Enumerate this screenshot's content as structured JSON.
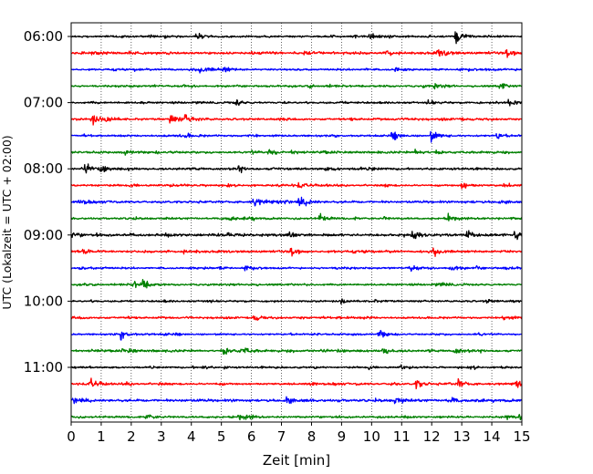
{
  "chart_data": {
    "type": "line",
    "title": "",
    "xlabel": "Zeit  [min]",
    "ylabel": "UTC (Lokalzeit = UTC + 02:00)",
    "xlim": [
      0,
      15
    ],
    "x_ticks": [
      0,
      1,
      2,
      3,
      4,
      5,
      6,
      7,
      8,
      9,
      10,
      11,
      12,
      13,
      14,
      15
    ],
    "y_ticks": [
      "06:00",
      "07:00",
      "08:00",
      "09:00",
      "10:00",
      "11:00"
    ],
    "grid": "vertical-dotted",
    "trace_colors": [
      "#000000",
      "#ff0000",
      "#0000ff",
      "#008000"
    ],
    "traces": [
      {
        "start": "06:00",
        "color": "#000000",
        "amplitude": 1.0,
        "events": [
          [
            12.8,
            4.0
          ],
          [
            9.9,
            2.0
          ],
          [
            4.2,
            1.5
          ]
        ]
      },
      {
        "start": "06:15",
        "color": "#ff0000",
        "amplitude": 1.3,
        "events": [
          [
            10.5,
            2.5
          ],
          [
            12.2,
            2.0
          ],
          [
            14.5,
            2.0
          ]
        ]
      },
      {
        "start": "06:30",
        "color": "#0000ff",
        "amplitude": 1.0,
        "events": [
          [
            4.3,
            2.0
          ],
          [
            5.1,
            1.5
          ],
          [
            10.8,
            1.5
          ]
        ]
      },
      {
        "start": "06:45",
        "color": "#008000",
        "amplitude": 1.0,
        "events": [
          [
            14.3,
            2.0
          ],
          [
            12.1,
            1.5
          ]
        ]
      },
      {
        "start": "07:00",
        "color": "#000000",
        "amplitude": 1.0,
        "events": [
          [
            5.5,
            2.0
          ],
          [
            14.6,
            2.0
          ],
          [
            11.9,
            1.5
          ]
        ]
      },
      {
        "start": "07:15",
        "color": "#ff0000",
        "amplitude": 1.1,
        "events": [
          [
            0.7,
            3.0
          ],
          [
            3.3,
            3.0
          ],
          [
            3.8,
            2.5
          ],
          [
            1.2,
            2.0
          ]
        ]
      },
      {
        "start": "07:30",
        "color": "#0000ff",
        "amplitude": 1.0,
        "events": [
          [
            12.0,
            3.0
          ],
          [
            10.7,
            2.0
          ],
          [
            14.2,
            1.5
          ]
        ]
      },
      {
        "start": "07:45",
        "color": "#008000",
        "amplitude": 1.2,
        "events": [
          [
            6.6,
            2.0
          ],
          [
            1.8,
            1.5
          ],
          [
            11.5,
            1.5
          ]
        ]
      },
      {
        "start": "08:00",
        "color": "#000000",
        "amplitude": 1.2,
        "events": [
          [
            0.5,
            2.5
          ],
          [
            1.0,
            2.0
          ],
          [
            5.6,
            1.5
          ]
        ]
      },
      {
        "start": "08:15",
        "color": "#ff0000",
        "amplitude": 1.0,
        "events": [
          [
            13.0,
            3.0
          ],
          [
            7.6,
            1.5
          ]
        ]
      },
      {
        "start": "08:30",
        "color": "#0000ff",
        "amplitude": 1.2,
        "events": [
          [
            7.6,
            3.5
          ],
          [
            6.1,
            2.5
          ],
          [
            0.3,
            1.5
          ]
        ]
      },
      {
        "start": "08:45",
        "color": "#008000",
        "amplitude": 1.0,
        "events": [
          [
            12.6,
            2.5
          ],
          [
            8.3,
            2.0
          ],
          [
            5.3,
            1.5
          ]
        ]
      },
      {
        "start": "09:00",
        "color": "#000000",
        "amplitude": 1.3,
        "events": [
          [
            11.4,
            3.0
          ],
          [
            14.8,
            3.0
          ],
          [
            13.2,
            2.5
          ],
          [
            7.3,
            2.0
          ]
        ]
      },
      {
        "start": "09:15",
        "color": "#ff0000",
        "amplitude": 1.2,
        "events": [
          [
            7.3,
            2.5
          ],
          [
            12.1,
            2.0
          ],
          [
            0.4,
            1.5
          ]
        ]
      },
      {
        "start": "09:30",
        "color": "#0000ff",
        "amplitude": 1.0,
        "events": [
          [
            11.3,
            2.0
          ],
          [
            12.6,
            2.0
          ],
          [
            5.8,
            1.5
          ]
        ]
      },
      {
        "start": "09:45",
        "color": "#008000",
        "amplitude": 1.0,
        "events": [
          [
            2.1,
            3.0
          ],
          [
            2.4,
            2.5
          ]
        ]
      },
      {
        "start": "10:00",
        "color": "#000000",
        "amplitude": 0.9,
        "events": [
          [
            9.0,
            1.5
          ],
          [
            13.8,
            1.2
          ]
        ]
      },
      {
        "start": "10:15",
        "color": "#ff0000",
        "amplitude": 1.0,
        "events": [
          [
            6.1,
            3.0
          ],
          [
            14.4,
            1.5
          ]
        ]
      },
      {
        "start": "10:30",
        "color": "#0000ff",
        "amplitude": 0.9,
        "events": [
          [
            1.7,
            3.0
          ],
          [
            10.3,
            1.5
          ]
        ]
      },
      {
        "start": "10:45",
        "color": "#008000",
        "amplitude": 1.2,
        "events": [
          [
            5.1,
            2.5
          ],
          [
            5.7,
            2.2
          ],
          [
            10.4,
            2.5
          ],
          [
            12.8,
            2.0
          ]
        ]
      },
      {
        "start": "11:00",
        "color": "#000000",
        "amplitude": 0.9,
        "events": [
          [
            4.4,
            1.2
          ],
          [
            11.0,
            1.2
          ]
        ]
      },
      {
        "start": "11:15",
        "color": "#ff0000",
        "amplitude": 1.1,
        "events": [
          [
            0.7,
            2.5
          ],
          [
            11.5,
            2.5
          ],
          [
            12.9,
            2.5
          ],
          [
            14.8,
            2.0
          ]
        ]
      },
      {
        "start": "11:30",
        "color": "#0000ff",
        "amplitude": 1.3,
        "events": [
          [
            0.1,
            2.0
          ],
          [
            12.6,
            2.5
          ],
          [
            10.8,
            2.0
          ],
          [
            7.2,
            2.0
          ]
        ]
      },
      {
        "start": "11:45",
        "color": "#008000",
        "amplitude": 1.0,
        "events": [
          [
            2.5,
            2.5
          ],
          [
            5.6,
            2.0
          ],
          [
            14.9,
            1.5
          ]
        ]
      }
    ]
  }
}
